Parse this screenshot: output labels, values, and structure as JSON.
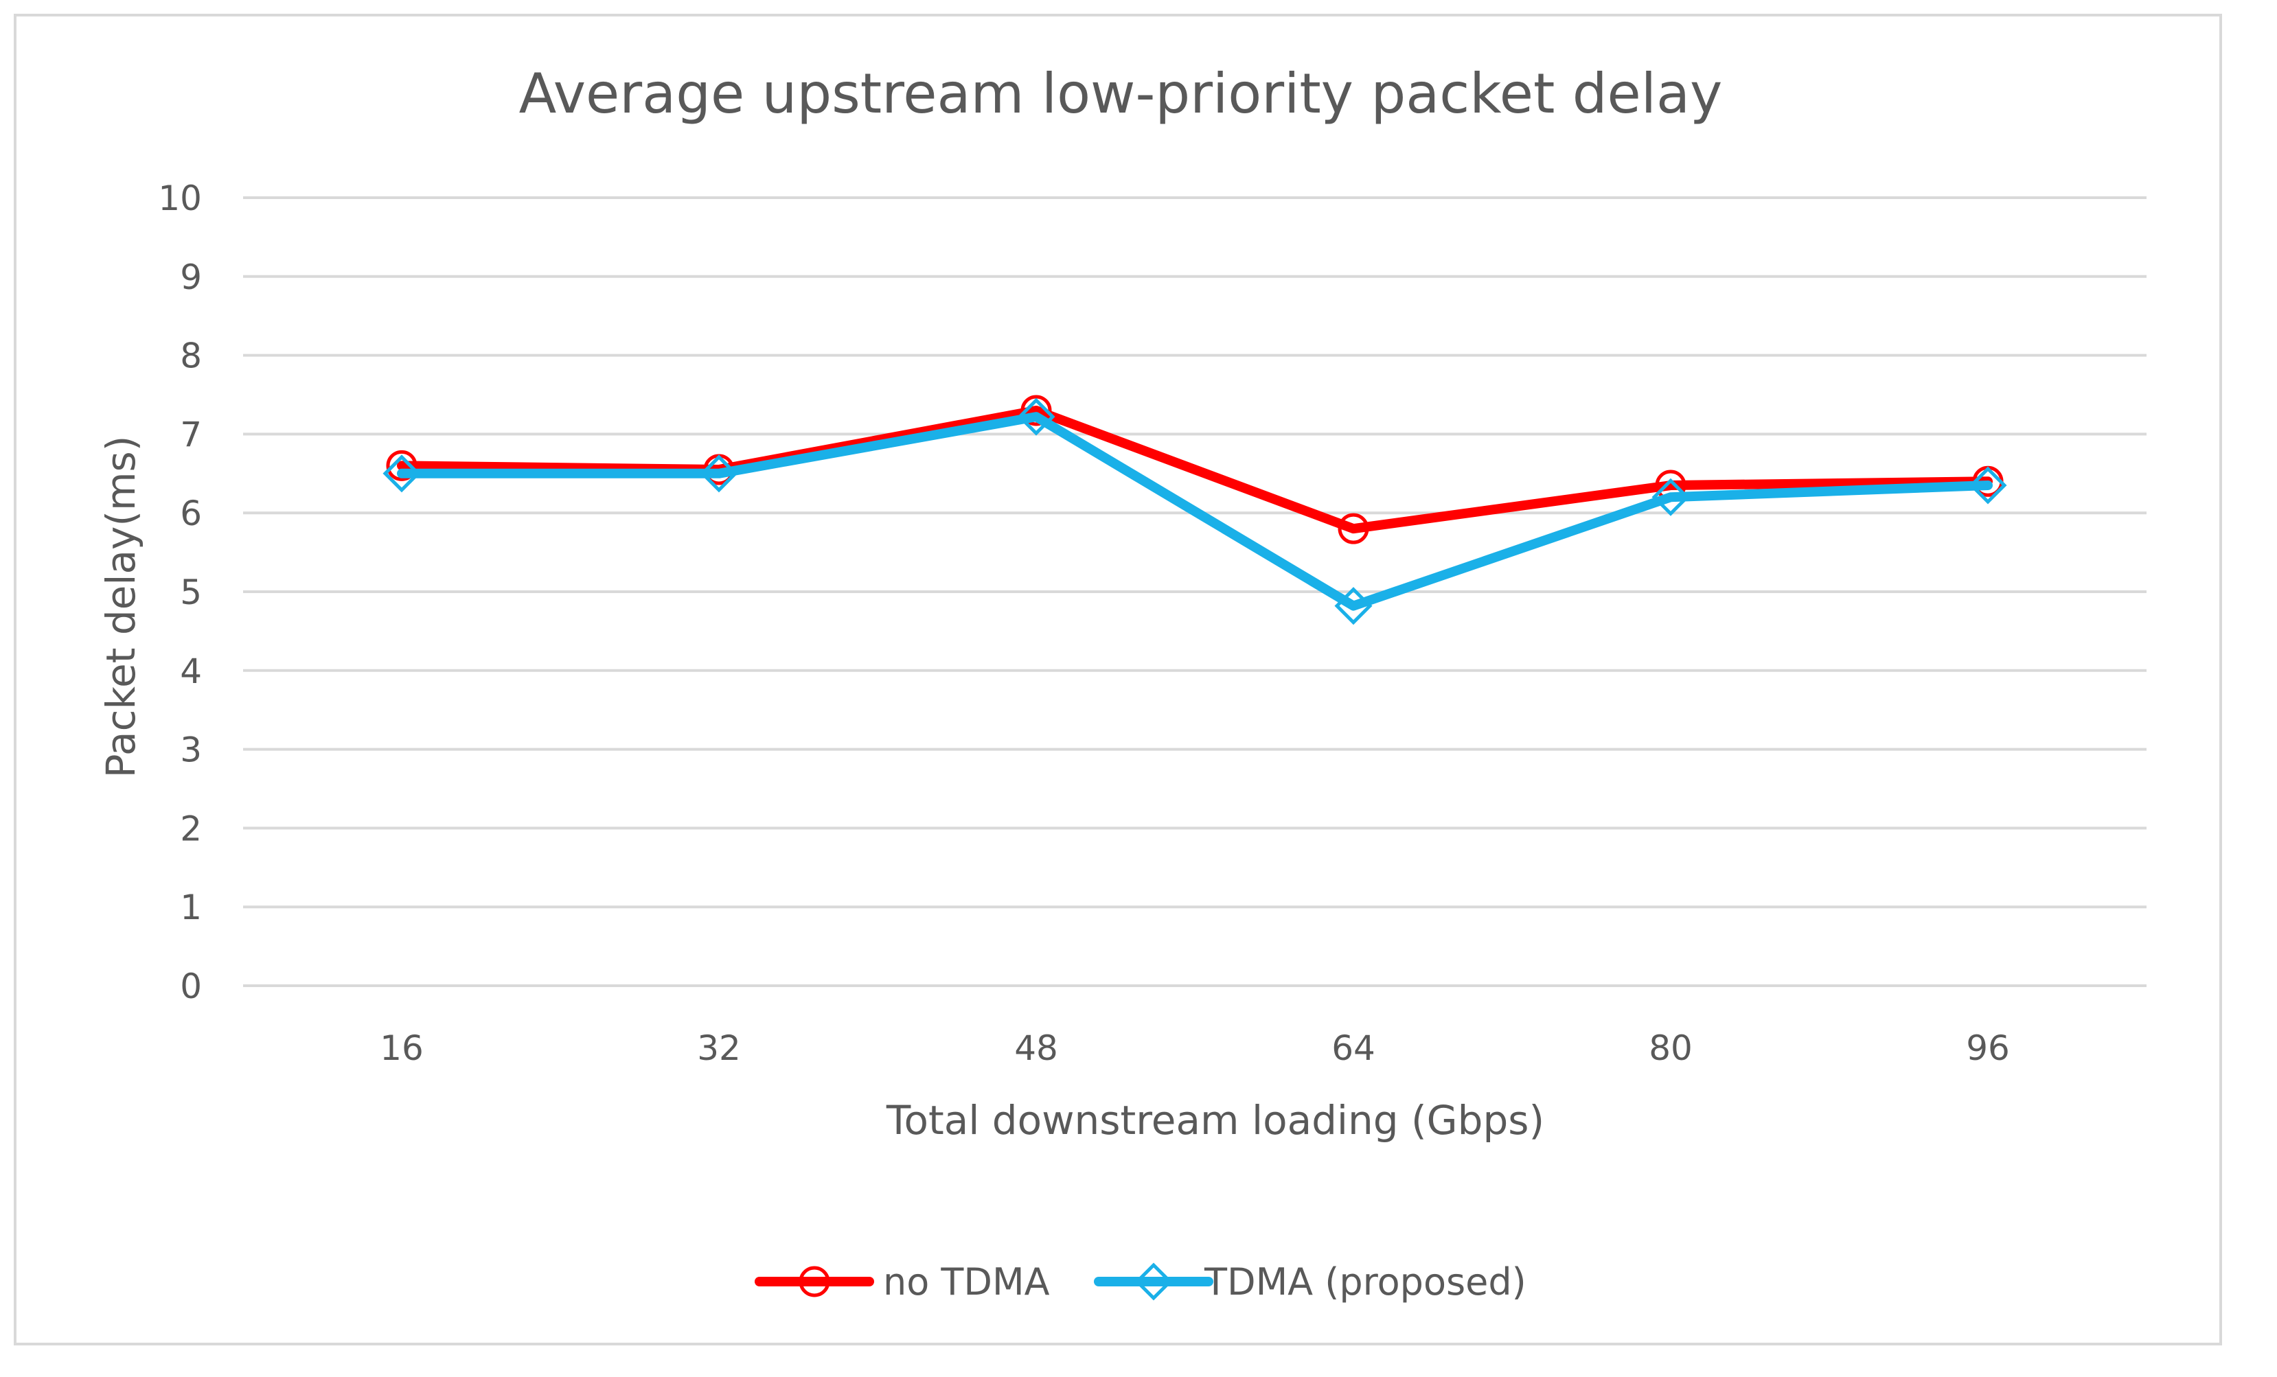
{
  "chart_data": {
    "type": "line",
    "title": "Average upstream low-priority packet delay",
    "xlabel": "Total downstream loading (Gbps)",
    "ylabel": "Packet delay(ms)",
    "categories": [
      "16",
      "32",
      "48",
      "64",
      "80",
      "96"
    ],
    "ylim": [
      0,
      10
    ],
    "yticks": [
      0,
      1,
      2,
      3,
      4,
      5,
      6,
      7,
      8,
      9,
      10
    ],
    "grid": true,
    "legend_position": "bottom",
    "series": [
      {
        "name": "no TDMA",
        "color": "#ff0000",
        "marker": "circle",
        "values": [
          6.6,
          6.55,
          7.3,
          5.8,
          6.35,
          6.4
        ]
      },
      {
        "name": "TDMA (proposed)",
        "color": "#1ab0e8",
        "marker": "diamond",
        "values": [
          6.5,
          6.5,
          7.22,
          4.82,
          6.2,
          6.35
        ]
      }
    ]
  }
}
